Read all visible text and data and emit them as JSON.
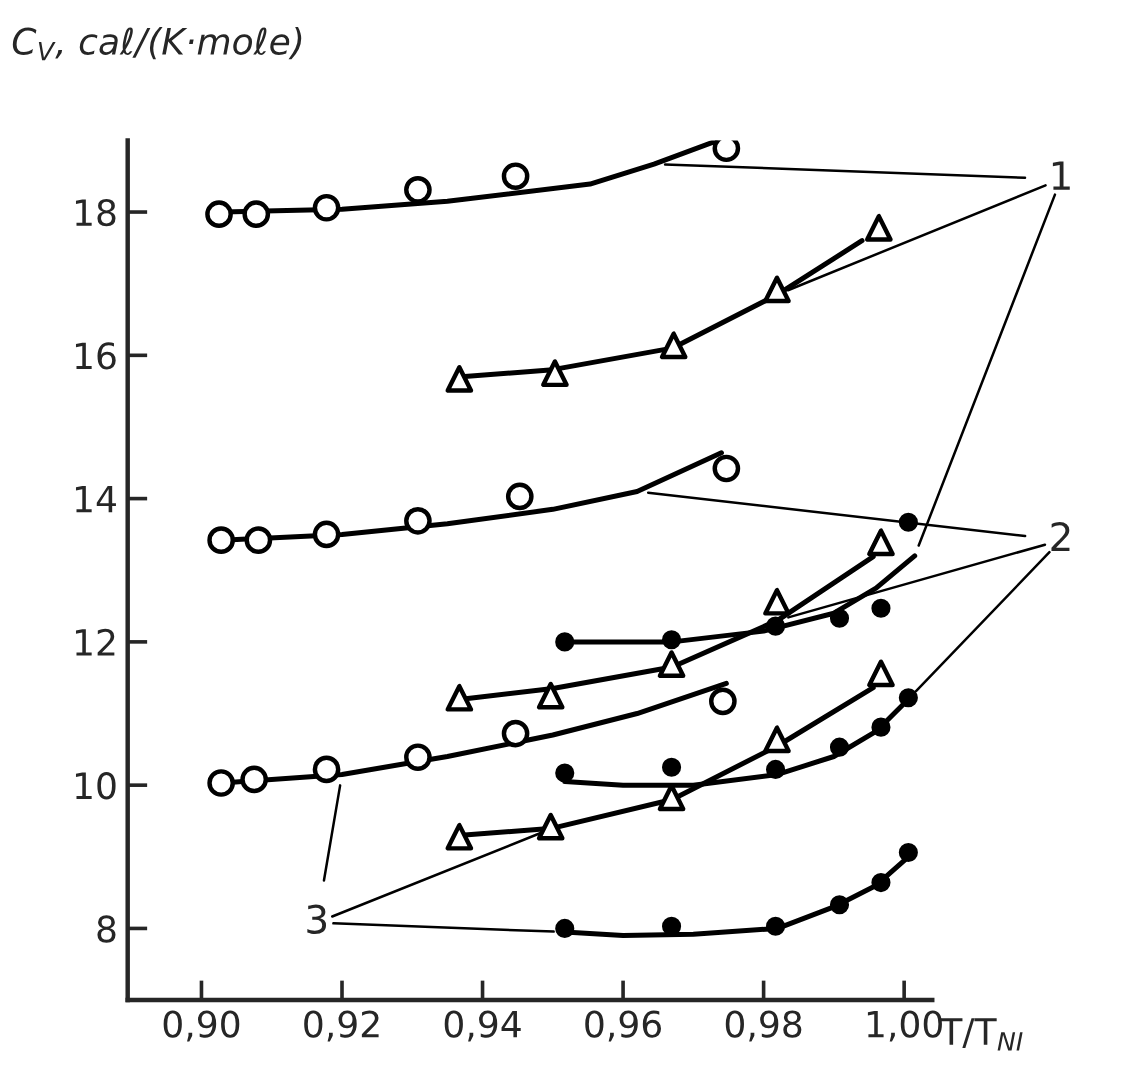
{
  "chart_data": {
    "type": "scatter",
    "xlabel": "T/T$_{NI}$",
    "ylabel": "C$_{V}$, caℓ/(K·moℓe)",
    "xlim": [
      0.8895,
      1.004
    ],
    "ylim": [
      7,
      19
    ],
    "xticks": [
      {
        "value": 0.9,
        "label": "0,90"
      },
      {
        "value": 0.92,
        "label": "0,92"
      },
      {
        "value": 0.94,
        "label": "0,94"
      },
      {
        "value": 0.96,
        "label": "0,96"
      },
      {
        "value": 0.98,
        "label": "0,98"
      },
      {
        "value": 1.0,
        "label": "1,00"
      }
    ],
    "yticks": [
      8,
      10,
      12,
      14,
      16,
      18
    ],
    "grid": false,
    "legend": false,
    "annotations": [
      {
        "text": "1",
        "x": 0.9644,
        "y": 18.67
      },
      {
        "text": "2",
        "x": 0.962,
        "y": 14.1
      },
      {
        "text": "3",
        "x": 0.92,
        "y": 10.15
      }
    ],
    "series": [
      {
        "marker": "circle",
        "color": "#ffffff",
        "x": [
          0.9025,
          0.9078,
          0.9178,
          0.9308,
          0.9447,
          0.9747
        ],
        "values": [
          17.97,
          17.97,
          18.06,
          18.31,
          18.5,
          18.89
        ]
      },
      {
        "marker": "triangle",
        "color": "#ffffff",
        "x": [
          0.9367,
          0.9503,
          0.9672,
          0.9819,
          0.9964
        ],
        "values": [
          15.67,
          15.75,
          16.14,
          16.92,
          17.78
        ]
      },
      {
        "marker": "circle",
        "color": "#ffffff",
        "x": [
          0.9028,
          0.9081,
          0.9178,
          0.9308,
          0.9453,
          0.9747
        ],
        "values": [
          13.42,
          13.42,
          13.5,
          13.69,
          14.03,
          14.42
        ]
      },
      {
        "marker": "triangle",
        "color": "#ffffff",
        "x": [
          0.9367,
          0.9497,
          0.9669,
          0.9819,
          0.9967
        ],
        "values": [
          11.22,
          11.25,
          11.69,
          12.56,
          13.39
        ]
      },
      {
        "marker": "circle",
        "color": "#000000",
        "x": [
          0.9517,
          0.9669,
          0.9817,
          0.9908,
          0.9967,
          1.0006
        ],
        "values": [
          12.0,
          12.03,
          12.22,
          12.33,
          12.47,
          13.67
        ]
      },
      {
        "marker": "circle",
        "color": "#ffffff",
        "x": [
          0.9028,
          0.9075,
          0.9178,
          0.9308,
          0.9447,
          0.9742
        ],
        "values": [
          10.03,
          10.08,
          10.22,
          10.39,
          10.72,
          11.17
        ]
      },
      {
        "marker": "triangle",
        "color": "#ffffff",
        "x": [
          0.9367,
          0.9497,
          0.9669,
          0.9819,
          0.9967
        ],
        "values": [
          9.28,
          9.42,
          9.83,
          10.64,
          11.56
        ]
      },
      {
        "marker": "circle",
        "color": "#000000",
        "x": [
          0.9517,
          0.9669,
          0.9817,
          0.9908,
          0.9967,
          1.0006
        ],
        "values": [
          10.17,
          10.25,
          10.22,
          10.53,
          10.81,
          11.22
        ]
      },
      {
        "marker": "circle",
        "color": "#000000",
        "x": [
          0.9517,
          0.9669,
          0.9817,
          0.9908,
          0.9967,
          1.0006
        ],
        "values": [
          8.0,
          8.03,
          8.03,
          8.33,
          8.64,
          9.06
        ]
      },
      {
        "type": "line",
        "color": "#000000",
        "x": [
          0.903,
          0.92,
          0.935,
          0.9553,
          0.9644,
          0.9735
        ],
        "values": [
          18.0,
          18.04,
          18.15,
          18.39,
          18.67,
          19.0
        ]
      },
      {
        "type": "line",
        "color": "#000000",
        "x": [
          0.937,
          0.95,
          0.967,
          0.982,
          0.994
        ],
        "values": [
          15.7,
          15.8,
          16.1,
          16.85,
          17.6
        ]
      },
      {
        "type": "line",
        "color": "#000000",
        "x": [
          0.903,
          0.92,
          0.935,
          0.95,
          0.962,
          0.974
        ],
        "values": [
          13.42,
          13.5,
          13.65,
          13.85,
          14.1,
          14.64
        ]
      },
      {
        "type": "line",
        "color": "#000000",
        "x": [
          0.937,
          0.95,
          0.967,
          0.982,
          0.9956
        ],
        "values": [
          11.2,
          11.35,
          11.65,
          12.3,
          13.19
        ]
      },
      {
        "type": "line",
        "color": "#000000",
        "x": [
          0.9517,
          0.967,
          0.98,
          0.99,
          0.996,
          1.0015
        ],
        "values": [
          12.0,
          12.0,
          12.15,
          12.4,
          12.75,
          13.2
        ]
      },
      {
        "type": "line",
        "color": "#000000",
        "x": [
          0.903,
          0.92,
          0.935,
          0.95,
          0.962,
          0.9747
        ],
        "values": [
          10.03,
          10.15,
          10.4,
          10.7,
          11.0,
          11.42
        ]
      },
      {
        "type": "line",
        "color": "#000000",
        "x": [
          0.937,
          0.95,
          0.967,
          0.982,
          0.9956
        ],
        "values": [
          9.3,
          9.4,
          9.8,
          10.55,
          11.36
        ]
      },
      {
        "type": "line",
        "color": "#000000",
        "x": [
          0.9517,
          0.96,
          0.97,
          0.982,
          0.99,
          0.996,
          1.0006
        ],
        "values": [
          10.05,
          10.0,
          10.0,
          10.15,
          10.4,
          10.75,
          11.2
        ]
      },
      {
        "type": "line",
        "color": "#000000",
        "x": [
          0.9517,
          0.96,
          0.97,
          0.982,
          0.99,
          0.996,
          1.0006
        ],
        "values": [
          7.95,
          7.9,
          7.92,
          8.0,
          8.3,
          8.6,
          9.0
        ]
      }
    ]
  }
}
